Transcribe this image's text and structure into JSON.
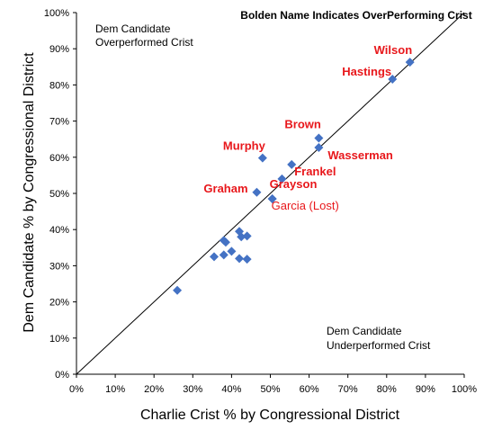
{
  "chart_data": {
    "type": "scatter",
    "title": "",
    "xlabel": "Charlie Crist % by Congressional District",
    "ylabel": "Dem Candidate % by Congressional District",
    "xlim": [
      0,
      100
    ],
    "ylim": [
      0,
      100
    ],
    "tick_step": 10,
    "tick_suffix": "%",
    "grid": false,
    "reference_line": "y = x",
    "header_note": "Bolden Name Indicates OverPerforming Crist",
    "region_labels": {
      "upper_left": [
        "Dem Candidate",
        "Overperformed Crist"
      ],
      "lower_right": [
        "Dem Candidate",
        "Underperformed Crist"
      ]
    },
    "colors": {
      "points": "#4472C4",
      "label_bold": "#E8171B",
      "label_normal": "#E8171B",
      "line": "#000000"
    },
    "points": [
      {
        "x": 86.0,
        "y": 86.3,
        "label": "Wilson",
        "bold": true
      },
      {
        "x": 81.5,
        "y": 81.6,
        "label": "Hastings",
        "bold": true
      },
      {
        "x": 62.5,
        "y": 65.3,
        "label": "Brown",
        "bold": true
      },
      {
        "x": 62.5,
        "y": 62.7,
        "label": "Wasserman",
        "bold": true
      },
      {
        "x": 48.0,
        "y": 59.8,
        "label": "Murphy",
        "bold": true
      },
      {
        "x": 55.5,
        "y": 58.0,
        "label": "Frankel",
        "bold": true
      },
      {
        "x": 53.0,
        "y": 54.0,
        "label": "",
        "bold": false
      },
      {
        "x": 46.5,
        "y": 50.3,
        "label": "Graham",
        "bold": true
      },
      {
        "x": 50.5,
        "y": 48.5,
        "label": "Grayson",
        "bold": true
      },
      {
        "x": 50.5,
        "y": 48.5,
        "label": "Garcia (Lost)",
        "bold": false
      },
      {
        "x": 42.0,
        "y": 39.5,
        "label": "",
        "bold": false
      },
      {
        "x": 44.0,
        "y": 38.2,
        "label": "",
        "bold": false
      },
      {
        "x": 42.5,
        "y": 38.0,
        "label": "",
        "bold": false
      },
      {
        "x": 38.0,
        "y": 37.0,
        "label": "",
        "bold": false
      },
      {
        "x": 38.5,
        "y": 36.5,
        "label": "",
        "bold": false
      },
      {
        "x": 40.0,
        "y": 34.0,
        "label": "",
        "bold": false
      },
      {
        "x": 38.0,
        "y": 33.0,
        "label": "",
        "bold": false
      },
      {
        "x": 35.5,
        "y": 32.5,
        "label": "",
        "bold": false
      },
      {
        "x": 42.0,
        "y": 32.0,
        "label": "",
        "bold": false
      },
      {
        "x": 44.0,
        "y": 31.8,
        "label": "",
        "bold": false
      },
      {
        "x": 26.0,
        "y": 23.2,
        "label": "",
        "bold": false
      }
    ]
  }
}
